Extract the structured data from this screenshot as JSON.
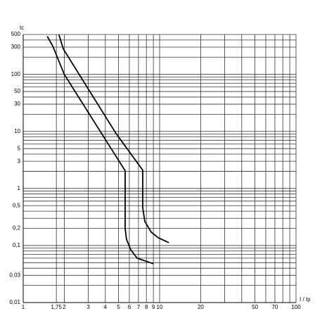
{
  "chart_data": {
    "type": "line",
    "x_label": "I / Ip",
    "y_label": "tc",
    "log_x": true,
    "log_y": true,
    "grid": true,
    "xlim": [
      1,
      100
    ],
    "ylim": [
      0.01,
      500
    ],
    "xticks": [
      1,
      {
        "value": 1.75,
        "label": "1,75"
      },
      2,
      3,
      4,
      5,
      6,
      7,
      8,
      9,
      10,
      20,
      50,
      70,
      100
    ],
    "xgrid": [
      30,
      40,
      60,
      80,
      90
    ],
    "yticks": [
      {
        "value": 0.01,
        "label": "0,01"
      },
      {
        "value": 0.03,
        "label": "0,03"
      },
      {
        "value": 0.1,
        "label": "0,1"
      },
      {
        "value": 0.2,
        "label": "0,2"
      },
      {
        "value": 0.5,
        "label": "0,5"
      },
      1,
      3,
      5,
      10,
      30,
      50,
      100,
      300,
      500
    ],
    "ygrid": [
      0.02,
      0.04,
      0.05,
      0.06,
      0.07,
      0.08,
      0.09,
      0.3,
      0.4,
      0.6,
      0.7,
      0.8,
      0.9,
      2,
      4,
      6,
      7,
      8,
      9,
      20,
      40,
      60,
      70,
      80,
      90,
      200,
      400
    ],
    "series": [
      {
        "color": "#000000",
        "x": [
          1.5,
          1.65,
          2.0,
          5.59,
          5.59,
          5.72,
          6.15,
          6.84,
          8.99
        ],
        "values": [
          464,
          310,
          100,
          2.04,
          0.198,
          0.129,
          0.084,
          0.06,
          0.048
        ]
      },
      {
        "color": "#000000",
        "x": [
          1.83,
          1.97,
          4.79,
          7.52,
          7.52,
          7.79,
          8.67,
          9.77,
          11.7
        ],
        "values": [
          491,
          278,
          9.2,
          2.09,
          0.46,
          0.263,
          0.172,
          0.137,
          0.112
        ]
      }
    ]
  }
}
